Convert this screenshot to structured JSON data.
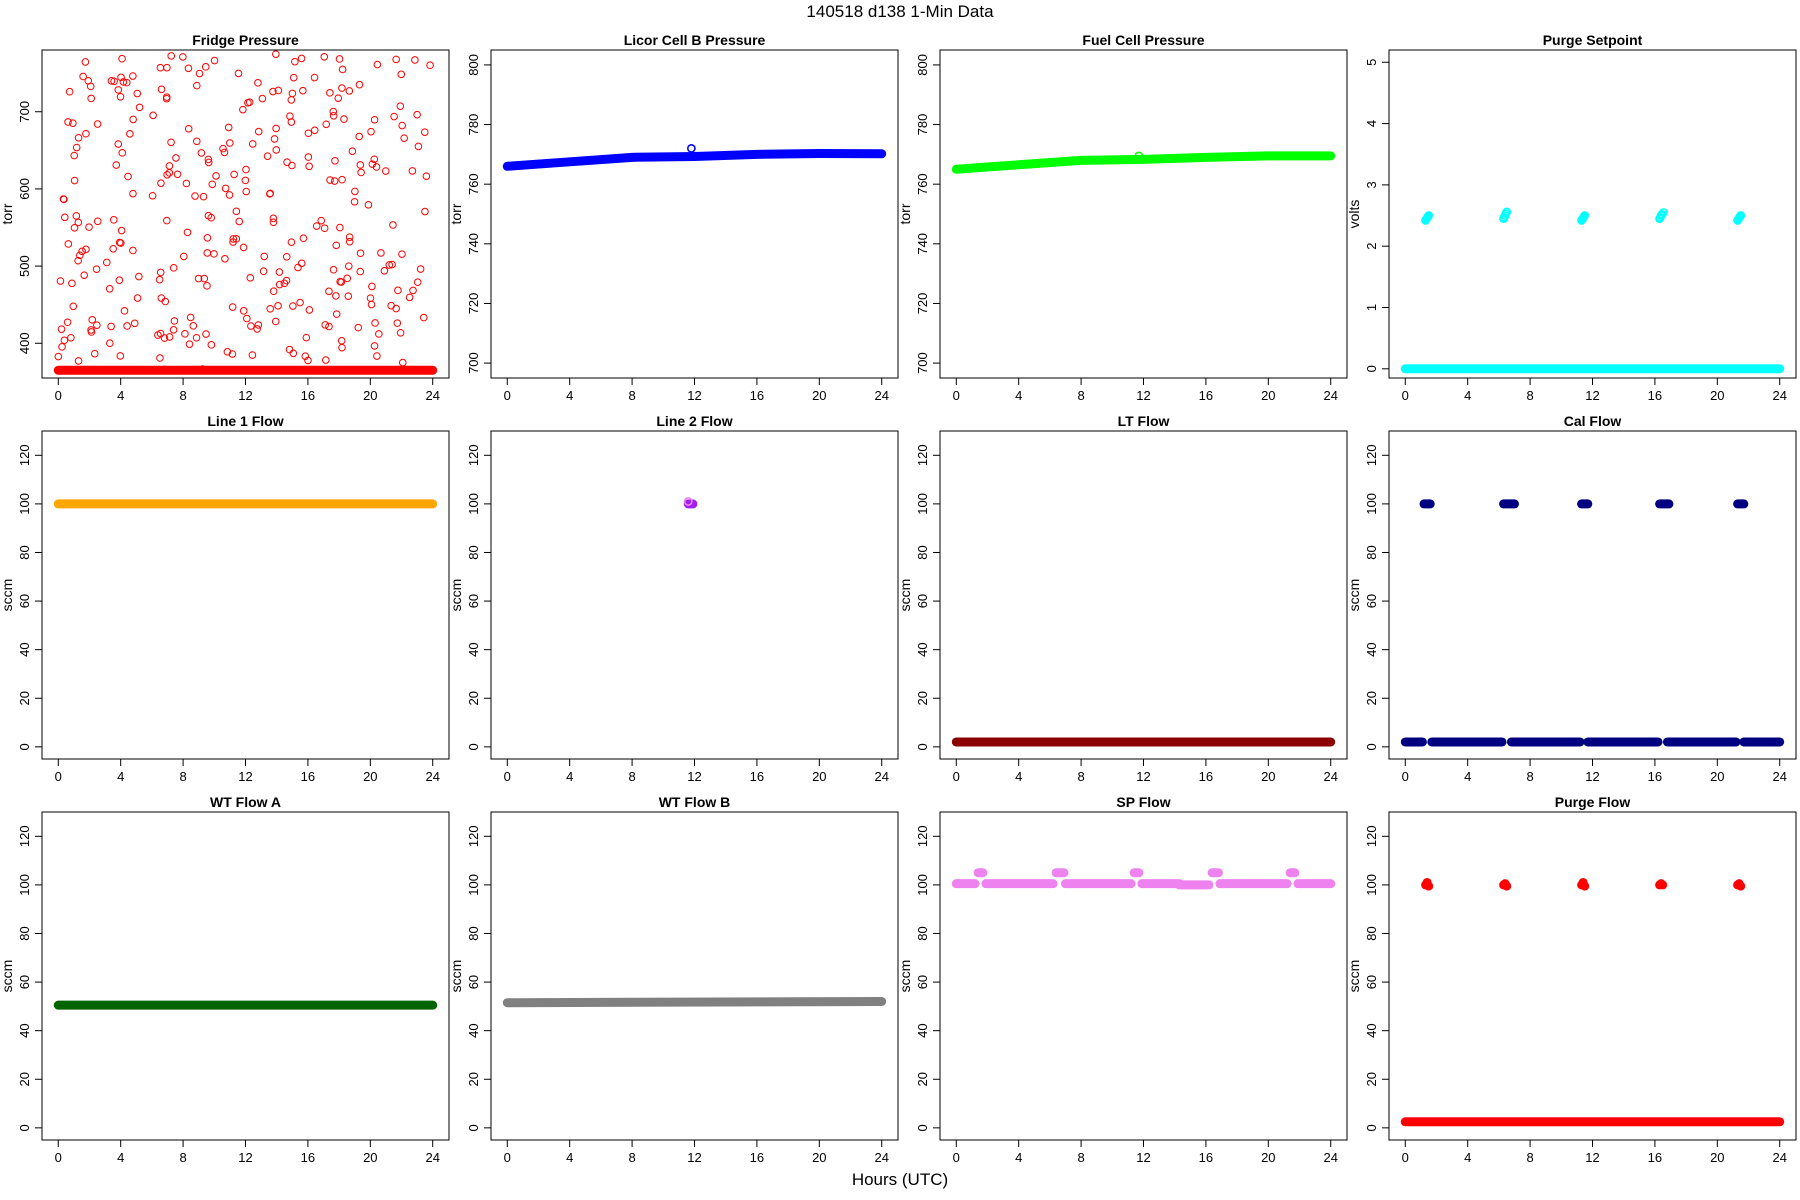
{
  "figure": {
    "title": "140518   d138   1-Min Data",
    "xlabel": "Hours (UTC)"
  },
  "chart_data": [
    {
      "type": "scatter",
      "title": "Fridge Pressure",
      "ylabel": "torr",
      "xlim": [
        0,
        24
      ],
      "ylim": [
        355,
        780
      ],
      "xticks": [
        0,
        4,
        8,
        12,
        16,
        20,
        24
      ],
      "yticks": [
        400,
        500,
        600,
        700
      ],
      "color": "#ff0000",
      "marker": "open",
      "series": [
        {
          "style": "band",
          "x": [
            0,
            24
          ],
          "y": [
            365,
            365
          ]
        },
        {
          "style": "scatter-random",
          "count": 320,
          "range": [
            365,
            775
          ]
        }
      ]
    },
    {
      "type": "scatter",
      "title": "Licor Cell B Pressure",
      "ylabel": "torr",
      "xlim": [
        0,
        24
      ],
      "ylim": [
        695,
        805
      ],
      "xticks": [
        0,
        4,
        8,
        12,
        16,
        20,
        24
      ],
      "yticks": [
        700,
        720,
        740,
        760,
        780,
        800
      ],
      "color": "#0000ff",
      "marker": "open",
      "series": [
        {
          "style": "band",
          "x": [
            0,
            4,
            8,
            12,
            16,
            20,
            24
          ],
          "y": [
            766,
            767.5,
            769,
            769.3,
            770,
            770.3,
            770.2
          ]
        },
        {
          "style": "points",
          "x": [
            11.8
          ],
          "y": [
            772
          ]
        }
      ]
    },
    {
      "type": "scatter",
      "title": "Fuel Cell Pressure",
      "ylabel": "torr",
      "xlim": [
        0,
        24
      ],
      "ylim": [
        695,
        805
      ],
      "xticks": [
        0,
        4,
        8,
        12,
        16,
        20,
        24
      ],
      "yticks": [
        700,
        720,
        740,
        760,
        780,
        800
      ],
      "color": "#00ff00",
      "marker": "open",
      "series": [
        {
          "style": "band",
          "x": [
            0,
            4,
            8,
            12,
            16,
            20,
            24
          ],
          "y": [
            765,
            766.5,
            768,
            768.3,
            769,
            769.5,
            769.5
          ]
        },
        {
          "style": "points",
          "x": [
            11.7
          ],
          "y": [
            769.5
          ]
        }
      ]
    },
    {
      "type": "scatter",
      "title": "Purge Setpoint",
      "ylabel": "volts",
      "xlim": [
        0,
        24
      ],
      "ylim": [
        -0.15,
        5.2
      ],
      "xticks": [
        0,
        4,
        8,
        12,
        16,
        20,
        24
      ],
      "yticks": [
        0,
        1,
        2,
        3,
        4,
        5
      ],
      "color": "#00ffff",
      "marker": "open",
      "series": [
        {
          "style": "band",
          "x": [
            0,
            24
          ],
          "y": [
            0,
            0
          ]
        },
        {
          "style": "points",
          "x": [
            1.3,
            1.35,
            1.4,
            1.45,
            1.5,
            6.3,
            6.35,
            6.4,
            6.45,
            6.5,
            11.3,
            11.35,
            11.4,
            11.45,
            11.5,
            16.3,
            16.35,
            16.4,
            16.45,
            16.55,
            21.3,
            21.35,
            21.4,
            21.45,
            21.5
          ],
          "y": [
            2.42,
            2.44,
            2.46,
            2.48,
            2.5,
            2.45,
            2.47,
            2.5,
            2.53,
            2.56,
            2.42,
            2.44,
            2.46,
            2.48,
            2.5,
            2.45,
            2.47,
            2.5,
            2.52,
            2.55,
            2.42,
            2.44,
            2.46,
            2.48,
            2.5
          ]
        }
      ]
    },
    {
      "type": "scatter",
      "title": "Line 1 Flow",
      "ylabel": "sccm",
      "xlim": [
        0,
        24
      ],
      "ylim": [
        -5,
        130
      ],
      "xticks": [
        0,
        4,
        8,
        12,
        16,
        20,
        24
      ],
      "yticks": [
        0,
        20,
        40,
        60,
        80,
        100,
        120
      ],
      "color": "#ffa500",
      "marker": "filled",
      "series": [
        {
          "style": "band",
          "x": [
            0,
            24
          ],
          "y": [
            100,
            100
          ]
        }
      ]
    },
    {
      "type": "scatter",
      "title": "Line 2 Flow",
      "ylabel": "sccm",
      "xlim": [
        0,
        24
      ],
      "ylim": [
        -5,
        130
      ],
      "xticks": [
        0,
        4,
        8,
        12,
        16,
        20,
        24
      ],
      "yticks": [
        0,
        20,
        40,
        60,
        80,
        100,
        120
      ],
      "color": "#a020f0",
      "marker": "filled",
      "series": [
        {
          "style": "points",
          "x": [
            11.6,
            11.7,
            11.8,
            11.9
          ],
          "y": [
            100,
            100,
            100,
            100
          ]
        },
        {
          "style": "points-open",
          "color": "#ee82ee",
          "x": [
            11.6
          ],
          "y": [
            101
          ]
        }
      ]
    },
    {
      "type": "scatter",
      "title": "LT Flow",
      "ylabel": "sccm",
      "xlim": [
        0,
        24
      ],
      "ylim": [
        -5,
        130
      ],
      "xticks": [
        0,
        4,
        8,
        12,
        16,
        20,
        24
      ],
      "yticks": [
        0,
        20,
        40,
        60,
        80,
        100,
        120
      ],
      "color": "#8b0000",
      "marker": "filled",
      "series": [
        {
          "style": "band",
          "x": [
            0,
            24
          ],
          "y": [
            2,
            2
          ]
        }
      ]
    },
    {
      "type": "scatter",
      "title": "Cal Flow",
      "ylabel": "sccm",
      "xlim": [
        0,
        24
      ],
      "ylim": [
        -5,
        130
      ],
      "xticks": [
        0,
        4,
        8,
        12,
        16,
        20,
        24
      ],
      "yticks": [
        0,
        20,
        40,
        60,
        80,
        100,
        120
      ],
      "color": "#000080",
      "marker": "filled",
      "series": [
        {
          "style": "band",
          "x": [
            0,
            1.1
          ],
          "y": [
            2,
            2
          ]
        },
        {
          "style": "band",
          "x": [
            1.7,
            6.2
          ],
          "y": [
            2,
            2
          ]
        },
        {
          "style": "band",
          "x": [
            6.8,
            11.2
          ],
          "y": [
            2,
            2
          ]
        },
        {
          "style": "band",
          "x": [
            11.7,
            16.2
          ],
          "y": [
            2,
            2
          ]
        },
        {
          "style": "band",
          "x": [
            16.8,
            21.2
          ],
          "y": [
            2,
            2
          ]
        },
        {
          "style": "band",
          "x": [
            21.7,
            24
          ],
          "y": [
            2,
            2
          ]
        },
        {
          "style": "band",
          "x": [
            1.2,
            1.6
          ],
          "y": [
            100,
            100
          ]
        },
        {
          "style": "band",
          "x": [
            6.3,
            7.0
          ],
          "y": [
            100,
            100
          ]
        },
        {
          "style": "band",
          "x": [
            11.3,
            11.7
          ],
          "y": [
            100,
            100
          ]
        },
        {
          "style": "band",
          "x": [
            16.3,
            16.9
          ],
          "y": [
            100,
            100
          ]
        },
        {
          "style": "band",
          "x": [
            21.3,
            21.7
          ],
          "y": [
            100,
            100
          ]
        }
      ]
    },
    {
      "type": "scatter",
      "title": "WT Flow A",
      "ylabel": "sccm",
      "xlim": [
        0,
        24
      ],
      "ylim": [
        -5,
        130
      ],
      "xticks": [
        0,
        4,
        8,
        12,
        16,
        20,
        24
      ],
      "yticks": [
        0,
        20,
        40,
        60,
        80,
        100,
        120
      ],
      "color": "#006400",
      "marker": "filled",
      "series": [
        {
          "style": "band",
          "x": [
            0,
            24
          ],
          "y": [
            50.5,
            50.5
          ]
        }
      ]
    },
    {
      "type": "scatter",
      "title": "WT Flow B",
      "ylabel": "sccm",
      "xlim": [
        0,
        24
      ],
      "ylim": [
        -5,
        130
      ],
      "xticks": [
        0,
        4,
        8,
        12,
        16,
        20,
        24
      ],
      "yticks": [
        0,
        20,
        40,
        60,
        80,
        100,
        120
      ],
      "color": "#808080",
      "marker": "filled",
      "series": [
        {
          "style": "band",
          "x": [
            0,
            24
          ],
          "y": [
            51.5,
            52
          ]
        }
      ]
    },
    {
      "type": "scatter",
      "title": "SP Flow",
      "ylabel": "sccm",
      "xlim": [
        0,
        24
      ],
      "ylim": [
        -5,
        130
      ],
      "xticks": [
        0,
        4,
        8,
        12,
        16,
        20,
        24
      ],
      "yticks": [
        0,
        20,
        40,
        60,
        80,
        100,
        120
      ],
      "color": "#ee82ee",
      "marker": "filled",
      "series": [
        {
          "style": "band",
          "x": [
            0,
            1.2
          ],
          "y": [
            100.5,
            100.5
          ]
        },
        {
          "style": "band",
          "x": [
            1.9,
            6.2
          ],
          "y": [
            100.5,
            100.5
          ]
        },
        {
          "style": "band",
          "x": [
            7.0,
            11.2
          ],
          "y": [
            100.5,
            100.5
          ]
        },
        {
          "style": "band",
          "x": [
            11.9,
            14.3
          ],
          "y": [
            100.5,
            100.5
          ]
        },
        {
          "style": "band",
          "x": [
            14.3,
            16.2
          ],
          "y": [
            100,
            100
          ]
        },
        {
          "style": "band",
          "x": [
            16.9,
            21.2
          ],
          "y": [
            100.5,
            100.5
          ]
        },
        {
          "style": "band",
          "x": [
            21.9,
            24
          ],
          "y": [
            100.5,
            100.5
          ]
        },
        {
          "style": "band",
          "x": [
            1.4,
            1.7
          ],
          "y": [
            105,
            105
          ]
        },
        {
          "style": "band",
          "x": [
            6.4,
            6.9
          ],
          "y": [
            105,
            105
          ]
        },
        {
          "style": "band",
          "x": [
            11.4,
            11.7
          ],
          "y": [
            105,
            105
          ]
        },
        {
          "style": "band",
          "x": [
            16.4,
            16.8
          ],
          "y": [
            105,
            105
          ]
        },
        {
          "style": "band",
          "x": [
            21.4,
            21.7
          ],
          "y": [
            105,
            105
          ]
        }
      ]
    },
    {
      "type": "scatter",
      "title": "Purge Flow",
      "ylabel": "sccm",
      "xlim": [
        0,
        24
      ],
      "ylim": [
        -5,
        130
      ],
      "xticks": [
        0,
        4,
        8,
        12,
        16,
        20,
        24
      ],
      "yticks": [
        0,
        20,
        40,
        60,
        80,
        100,
        120
      ],
      "color": "#ff0000",
      "marker": "filled",
      "series": [
        {
          "style": "band",
          "x": [
            0,
            24
          ],
          "y": [
            2.5,
            2.5
          ]
        },
        {
          "style": "points",
          "x": [
            1.3,
            1.4,
            1.5,
            6.3,
            6.4,
            6.5,
            11.3,
            11.4,
            11.5,
            16.3,
            16.4,
            16.5,
            21.3,
            21.4,
            21.5
          ],
          "y": [
            100,
            101,
            99.5,
            100,
            100.5,
            99.5,
            100,
            101,
            99.5,
            100,
            100.5,
            100,
            100,
            100.5,
            99.5
          ]
        }
      ]
    }
  ]
}
